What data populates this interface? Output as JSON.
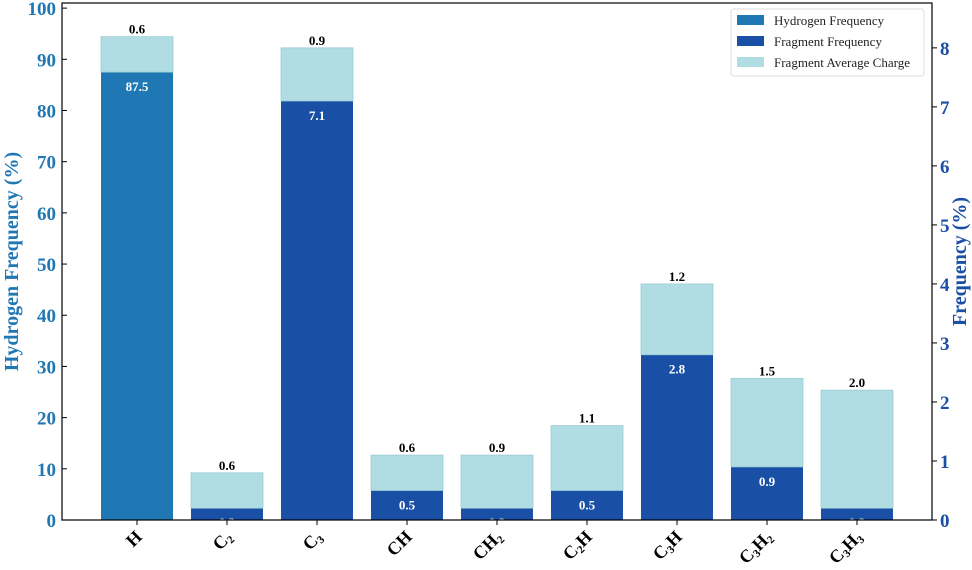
{
  "chart_data": {
    "type": "bar",
    "title": "",
    "xlabel": "",
    "ylabel_left": "Hydrogen Frequency (%)",
    "ylabel_right": "Frequency (%)",
    "ylim_left": [
      0,
      101
    ],
    "ylim_right": [
      0,
      8.76
    ],
    "yticks_left": [
      0,
      10,
      20,
      30,
      40,
      50,
      60,
      70,
      80,
      90,
      100
    ],
    "yticks_right": [
      0,
      1,
      2,
      3,
      4,
      5,
      6,
      7,
      8
    ],
    "categories": [
      {
        "base": "H",
        "sub": ""
      },
      {
        "base": "C",
        "sub": "2"
      },
      {
        "base": "C",
        "sub": "3"
      },
      {
        "base": "CH",
        "sub": ""
      },
      {
        "base": "CH",
        "sub": "2"
      },
      {
        "base": "C",
        "sub": "2",
        "rest": "H"
      },
      {
        "base": "C",
        "sub": "3",
        "rest": "H"
      },
      {
        "base": "C",
        "sub": "3",
        "rest": "H",
        "sub2": "2"
      },
      {
        "base": "C",
        "sub": "3",
        "rest": "H",
        "sub2": "3"
      }
    ],
    "series": [
      {
        "name": "Hydrogen Frequency",
        "axis": "left",
        "values": [
          87.5,
          null,
          null,
          null,
          null,
          null,
          null,
          null,
          null
        ],
        "color": "#1f77b4"
      },
      {
        "name": "Fragment Frequency",
        "axis": "right",
        "values": [
          null,
          0.2,
          7.1,
          0.5,
          0.2,
          0.5,
          2.8,
          0.9,
          0.2
        ],
        "color": "#1a4fa6"
      },
      {
        "name": "Fragment Average Charge",
        "axis": "right",
        "stacked": true,
        "values": [
          0.6,
          0.6,
          0.9,
          0.6,
          0.9,
          1.1,
          1.2,
          1.5,
          2.0
        ],
        "color": "#b0dde4"
      }
    ],
    "legend": "top-right",
    "grid": false,
    "left_axis_color": "#1f77b4",
    "right_axis_color": "#1a4fa6"
  }
}
